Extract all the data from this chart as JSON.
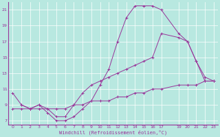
{
  "xlabel": "Windchill (Refroidissement éolien,°C)",
  "bg_color": "#b8e8e0",
  "grid_color": "#ffffff",
  "line_color": "#993399",
  "xlim": [
    -0.5,
    23.5
  ],
  "ylim": [
    6.5,
    22.0
  ],
  "yticks": [
    7,
    9,
    11,
    13,
    15,
    17,
    19,
    21
  ],
  "xticks": [
    0,
    1,
    2,
    3,
    4,
    5,
    6,
    7,
    8,
    9,
    10,
    11,
    12,
    13,
    14,
    15,
    16,
    17,
    19,
    20,
    21,
    22,
    23
  ],
  "line1_x": [
    0,
    1,
    2,
    3,
    4,
    5,
    6,
    7,
    8,
    9,
    10,
    11,
    12,
    13,
    14,
    15,
    16,
    17,
    19,
    20,
    21,
    22,
    23
  ],
  "line1_y": [
    10.5,
    9.0,
    8.5,
    9.0,
    8.0,
    7.0,
    7.0,
    7.5,
    8.5,
    9.5,
    11.5,
    13.5,
    17.0,
    20.0,
    21.5,
    21.5,
    21.5,
    21.0,
    18.0,
    17.0,
    14.5,
    12.0,
    12.0
  ],
  "line2_x": [
    1,
    2,
    3,
    4,
    5,
    6,
    7,
    8,
    9,
    10,
    11,
    12,
    13,
    14,
    15,
    16,
    17,
    19,
    20,
    21,
    22,
    23
  ],
  "line2_y": [
    9.0,
    8.5,
    9.0,
    8.5,
    7.5,
    7.5,
    9.0,
    10.5,
    11.5,
    12.0,
    12.5,
    13.0,
    13.5,
    14.0,
    14.5,
    15.0,
    18.0,
    17.5,
    17.0,
    14.5,
    12.5,
    12.0
  ],
  "line3_x": [
    0,
    1,
    2,
    3,
    4,
    5,
    6,
    7,
    8,
    9,
    10,
    11,
    12,
    13,
    14,
    15,
    16,
    17,
    19,
    20,
    21,
    22,
    23
  ],
  "line3_y": [
    8.5,
    8.5,
    8.5,
    8.5,
    8.5,
    8.5,
    8.5,
    9.0,
    9.0,
    9.5,
    9.5,
    9.5,
    10.0,
    10.0,
    10.5,
    10.5,
    11.0,
    11.0,
    11.5,
    11.5,
    11.5,
    12.0,
    12.0
  ]
}
